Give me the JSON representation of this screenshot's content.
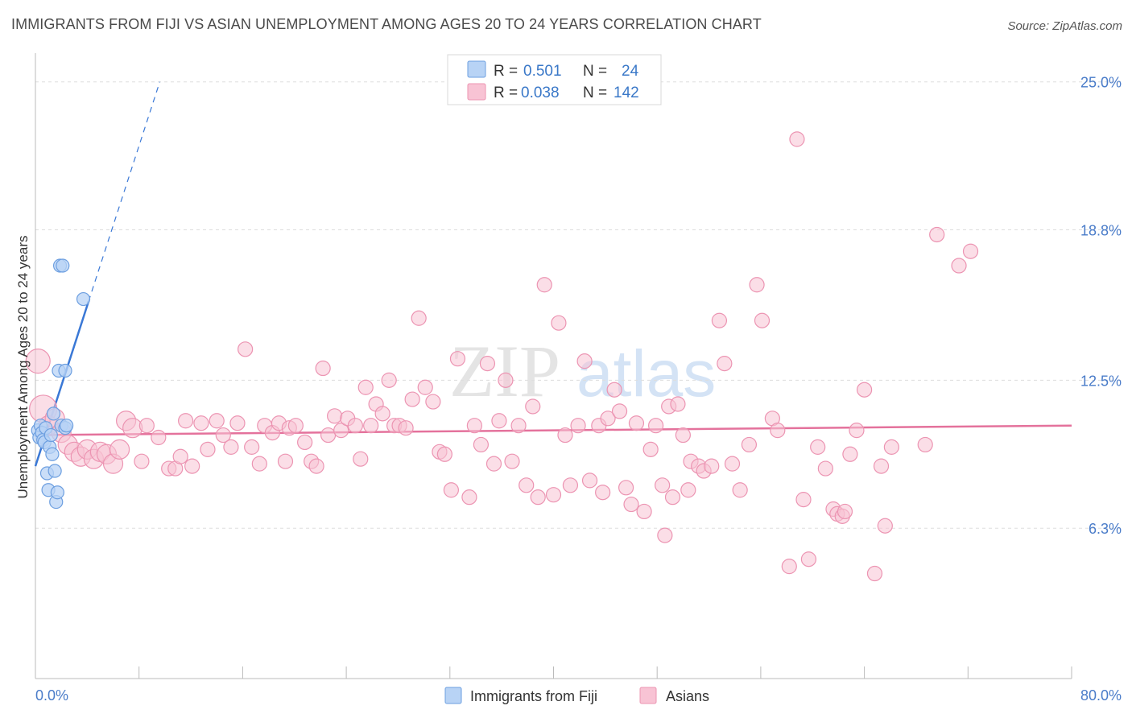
{
  "title": "IMMIGRANTS FROM FIJI VS ASIAN UNEMPLOYMENT AMONG AGES 20 TO 24 YEARS CORRELATION CHART",
  "source": "Source: ZipAtlas.com",
  "watermark": {
    "zip": "ZIP",
    "atlas": "atlas"
  },
  "legend": {
    "r_label": "R =",
    "n_label": "N =",
    "series": [
      {
        "r": "0.501",
        "n": "24"
      },
      {
        "r": "0.038",
        "n": "142"
      }
    ]
  },
  "bottom_legend": [
    "Immigrants from Fiji",
    "Asians"
  ],
  "colors": {
    "fiji_fill": "#b8d3f5",
    "fiji_stroke": "#6d9fe0",
    "fiji_line": "#3a78d6",
    "asian_fill": "#f8c3d4",
    "asian_stroke": "#ec94b2",
    "asian_line": "#e4729c",
    "tick_text": "#4a7cc9",
    "grid": "#dddddd"
  },
  "chart_data": {
    "type": "scatter",
    "title": "IMMIGRANTS FROM FIJI VS ASIAN UNEMPLOYMENT AMONG AGES 20 TO 24 YEARS CORRELATION CHART",
    "xlabel": "",
    "ylabel": "Unemployment Among Ages 20 to 24 years",
    "xlim": [
      0,
      80
    ],
    "ylim": [
      0,
      25.8
    ],
    "x_tick_labels": [
      "0.0%",
      "80.0%"
    ],
    "y_ticks": [
      {
        "value": 6.3,
        "label": "6.3%"
      },
      {
        "value": 12.5,
        "label": "12.5%"
      },
      {
        "value": 18.8,
        "label": "18.8%"
      },
      {
        "value": 25.0,
        "label": "25.0%"
      }
    ],
    "series": [
      {
        "name": "Immigrants from Fiji",
        "r": 0.501,
        "n": 24,
        "trend": {
          "x": [
            0,
            4.1
          ],
          "y": [
            8.9,
            15.8
          ]
        },
        "trend_extension": {
          "x": [
            4.1,
            9.6
          ],
          "y": [
            15.8,
            25.0
          ]
        },
        "points": [
          [
            0.2,
            10.4
          ],
          [
            0.3,
            10.1
          ],
          [
            0.4,
            10.6
          ],
          [
            0.5,
            10.3
          ],
          [
            0.6,
            10.0
          ],
          [
            0.7,
            9.9
          ],
          [
            0.8,
            10.5
          ],
          [
            0.9,
            8.6
          ],
          [
            1.0,
            7.9
          ],
          [
            1.1,
            9.7
          ],
          [
            1.2,
            10.2
          ],
          [
            1.3,
            9.4
          ],
          [
            1.4,
            11.1
          ],
          [
            1.5,
            8.7
          ],
          [
            1.6,
            7.4
          ],
          [
            1.7,
            7.8
          ],
          [
            1.8,
            12.9
          ],
          [
            1.9,
            17.3
          ],
          [
            2.0,
            10.6
          ],
          [
            2.1,
            17.3
          ],
          [
            2.3,
            10.5
          ],
          [
            2.4,
            10.6
          ],
          [
            2.3,
            12.9
          ],
          [
            3.7,
            15.9
          ]
        ]
      },
      {
        "name": "Asians",
        "r": 0.038,
        "n": 142,
        "trend": {
          "x": [
            0,
            80
          ],
          "y": [
            10.2,
            10.6
          ]
        },
        "points": [
          [
            0.2,
            13.3
          ],
          [
            0.6,
            11.3
          ],
          [
            1.0,
            10.6
          ],
          [
            1.5,
            10.9
          ],
          [
            2.0,
            10.3
          ],
          [
            2.5,
            9.8
          ],
          [
            3.0,
            9.5
          ],
          [
            3.5,
            9.3
          ],
          [
            4.0,
            9.6
          ],
          [
            4.5,
            9.2
          ],
          [
            5.0,
            9.5
          ],
          [
            5.5,
            9.4
          ],
          [
            6.0,
            9.0
          ],
          [
            6.5,
            9.6
          ],
          [
            7.0,
            10.8
          ],
          [
            7.5,
            10.5
          ],
          [
            8.2,
            9.1
          ],
          [
            8.6,
            10.6
          ],
          [
            9.5,
            10.1
          ],
          [
            10.3,
            8.8
          ],
          [
            10.8,
            8.8
          ],
          [
            11.2,
            9.3
          ],
          [
            11.6,
            10.8
          ],
          [
            12.1,
            8.9
          ],
          [
            12.8,
            10.7
          ],
          [
            13.3,
            9.6
          ],
          [
            14.0,
            10.8
          ],
          [
            14.5,
            10.2
          ],
          [
            15.1,
            9.7
          ],
          [
            15.6,
            10.7
          ],
          [
            16.2,
            13.8
          ],
          [
            16.7,
            9.7
          ],
          [
            17.3,
            9.0
          ],
          [
            17.7,
            10.6
          ],
          [
            18.3,
            10.3
          ],
          [
            18.8,
            10.7
          ],
          [
            19.3,
            9.1
          ],
          [
            19.6,
            10.5
          ],
          [
            20.1,
            10.6
          ],
          [
            20.8,
            9.9
          ],
          [
            21.3,
            9.1
          ],
          [
            21.7,
            8.9
          ],
          [
            22.2,
            13.0
          ],
          [
            22.6,
            10.2
          ],
          [
            23.1,
            11.0
          ],
          [
            23.6,
            10.4
          ],
          [
            24.1,
            10.9
          ],
          [
            24.7,
            10.6
          ],
          [
            25.1,
            9.2
          ],
          [
            25.5,
            12.2
          ],
          [
            25.9,
            10.6
          ],
          [
            26.3,
            11.5
          ],
          [
            26.8,
            11.1
          ],
          [
            27.3,
            12.5
          ],
          [
            27.7,
            10.6
          ],
          [
            28.1,
            10.6
          ],
          [
            28.6,
            10.5
          ],
          [
            29.1,
            11.7
          ],
          [
            29.6,
            15.1
          ],
          [
            30.1,
            12.2
          ],
          [
            30.7,
            11.6
          ],
          [
            31.2,
            9.5
          ],
          [
            31.6,
            9.4
          ],
          [
            32.1,
            7.9
          ],
          [
            32.6,
            13.4
          ],
          [
            33.5,
            7.6
          ],
          [
            33.9,
            10.6
          ],
          [
            34.4,
            9.8
          ],
          [
            34.9,
            13.2
          ],
          [
            35.4,
            9.0
          ],
          [
            35.8,
            10.8
          ],
          [
            36.3,
            12.5
          ],
          [
            36.8,
            9.1
          ],
          [
            37.3,
            10.6
          ],
          [
            37.9,
            8.1
          ],
          [
            38.4,
            11.4
          ],
          [
            38.8,
            7.6
          ],
          [
            39.3,
            16.5
          ],
          [
            40.0,
            7.7
          ],
          [
            40.4,
            14.9
          ],
          [
            40.9,
            10.2
          ],
          [
            41.3,
            8.1
          ],
          [
            41.9,
            10.6
          ],
          [
            42.4,
            13.3
          ],
          [
            42.8,
            8.3
          ],
          [
            43.5,
            10.6
          ],
          [
            43.8,
            7.8
          ],
          [
            44.2,
            10.9
          ],
          [
            44.7,
            12.1
          ],
          [
            45.1,
            11.2
          ],
          [
            45.6,
            8.0
          ],
          [
            46.0,
            7.3
          ],
          [
            46.4,
            10.7
          ],
          [
            47.0,
            7.0
          ],
          [
            47.5,
            9.6
          ],
          [
            47.9,
            10.6
          ],
          [
            48.4,
            8.1
          ],
          [
            48.9,
            11.4
          ],
          [
            49.2,
            7.6
          ],
          [
            49.6,
            11.5
          ],
          [
            50.0,
            10.2
          ],
          [
            50.6,
            9.1
          ],
          [
            51.2,
            8.9
          ],
          [
            51.6,
            8.7
          ],
          [
            52.2,
            8.9
          ],
          [
            52.8,
            15.0
          ],
          [
            53.2,
            13.2
          ],
          [
            53.8,
            9.0
          ],
          [
            54.4,
            7.9
          ],
          [
            55.1,
            9.8
          ],
          [
            55.7,
            16.5
          ],
          [
            56.1,
            15.0
          ],
          [
            56.9,
            10.9
          ],
          [
            57.3,
            10.4
          ],
          [
            58.2,
            4.7
          ],
          [
            58.8,
            22.6
          ],
          [
            59.3,
            7.5
          ],
          [
            59.7,
            5.0
          ],
          [
            60.4,
            9.7
          ],
          [
            61.0,
            8.8
          ],
          [
            61.6,
            7.1
          ],
          [
            61.9,
            6.9
          ],
          [
            62.3,
            6.8
          ],
          [
            62.9,
            9.4
          ],
          [
            63.4,
            10.4
          ],
          [
            64.0,
            12.1
          ],
          [
            64.8,
            4.4
          ],
          [
            65.3,
            8.9
          ],
          [
            65.6,
            6.4
          ],
          [
            66.1,
            9.7
          ],
          [
            68.7,
            9.8
          ],
          [
            69.6,
            18.6
          ],
          [
            71.3,
            17.3
          ],
          [
            72.2,
            17.9
          ],
          [
            48.6,
            6.0
          ],
          [
            50.4,
            7.9
          ],
          [
            62.5,
            7.0
          ]
        ]
      }
    ]
  }
}
